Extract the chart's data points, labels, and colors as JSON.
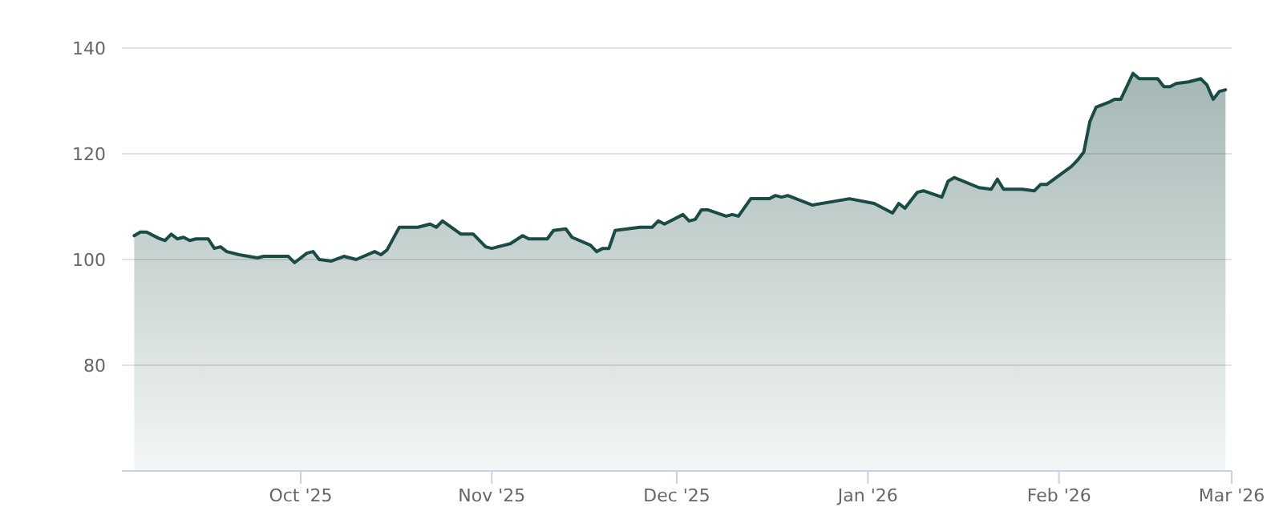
{
  "chart_data": {
    "type": "area",
    "x": [
      "2025-09-04",
      "2025-09-05",
      "2025-09-06",
      "2025-09-08",
      "2025-09-09",
      "2025-09-10",
      "2025-09-11",
      "2025-09-12",
      "2025-09-13",
      "2025-09-14",
      "2025-09-16",
      "2025-09-17",
      "2025-09-18",
      "2025-09-19",
      "2025-09-21",
      "2025-09-24",
      "2025-09-25",
      "2025-09-29",
      "2025-09-30",
      "2025-10-02",
      "2025-10-03",
      "2025-10-04",
      "2025-10-06",
      "2025-10-08",
      "2025-10-10",
      "2025-10-13",
      "2025-10-14",
      "2025-10-15",
      "2025-10-17",
      "2025-10-20",
      "2025-10-22",
      "2025-10-23",
      "2025-10-24",
      "2025-10-27",
      "2025-10-29",
      "2025-10-31",
      "2025-11-01",
      "2025-11-04",
      "2025-11-06",
      "2025-11-07",
      "2025-11-10",
      "2025-11-11",
      "2025-11-13",
      "2025-11-14",
      "2025-11-17",
      "2025-11-18",
      "2025-11-19",
      "2025-11-20",
      "2025-11-21",
      "2025-11-25",
      "2025-11-27",
      "2025-11-28",
      "2025-11-29",
      "2025-12-02",
      "2025-12-03",
      "2025-12-04",
      "2025-12-05",
      "2025-12-06",
      "2025-12-09",
      "2025-12-10",
      "2025-12-11",
      "2025-12-13",
      "2025-12-16",
      "2025-12-17",
      "2025-12-18",
      "2025-12-19",
      "2025-12-23",
      "2025-12-29",
      "2026-01-02",
      "2026-01-05",
      "2026-01-06",
      "2026-01-07",
      "2026-01-09",
      "2026-01-10",
      "2026-01-13",
      "2026-01-14",
      "2026-01-15",
      "2026-01-19",
      "2026-01-21",
      "2026-01-22",
      "2026-01-23",
      "2026-01-26",
      "2026-01-28",
      "2026-01-29",
      "2026-01-30",
      "2026-02-03",
      "2026-02-04",
      "2026-02-05",
      "2026-02-06",
      "2026-02-07",
      "2026-02-09",
      "2026-02-10",
      "2026-02-11",
      "2026-02-13",
      "2026-02-14",
      "2026-02-17",
      "2026-02-18",
      "2026-02-19",
      "2026-02-20",
      "2026-02-22",
      "2026-02-24",
      "2026-02-25",
      "2026-02-26",
      "2026-02-27",
      "2026-02-28"
    ],
    "series": [
      {
        "color": "#1b4b45",
        "values": [
          104.5,
          105.2,
          105.2,
          104.0,
          103.6,
          104.8,
          103.9,
          104.2,
          103.6,
          103.9,
          103.9,
          102.1,
          102.4,
          101.5,
          100.9,
          100.3,
          100.6,
          100.6,
          99.4,
          101.2,
          101.5,
          100.0,
          99.7,
          100.6,
          100.0,
          101.5,
          100.9,
          101.8,
          106.1,
          106.1,
          106.7,
          106.1,
          107.3,
          104.8,
          104.8,
          102.4,
          102.1,
          103.0,
          104.5,
          103.9,
          103.9,
          105.5,
          105.8,
          104.2,
          102.7,
          101.5,
          102.1,
          102.1,
          105.5,
          106.1,
          106.1,
          107.3,
          106.7,
          108.5,
          107.3,
          107.6,
          109.4,
          109.4,
          108.2,
          108.5,
          108.2,
          111.5,
          111.5,
          112.1,
          111.8,
          112.1,
          110.3,
          111.5,
          110.6,
          108.8,
          110.6,
          109.7,
          112.7,
          113.0,
          111.8,
          114.8,
          115.5,
          113.6,
          113.3,
          115.2,
          113.3,
          113.3,
          113.0,
          114.2,
          114.2,
          117.6,
          118.8,
          120.3,
          126.1,
          128.8,
          129.7,
          130.3,
          130.3,
          135.2,
          134.2,
          134.2,
          132.7,
          132.7,
          133.3,
          133.6,
          134.2,
          133.0,
          130.3,
          131.8,
          132.1
        ]
      }
    ],
    "xlim": [
      "2025-09-02",
      "2026-03-01"
    ],
    "xticks": [
      {
        "value": "2025-10-01",
        "label": "Oct '25"
      },
      {
        "value": "2025-11-01",
        "label": "Nov '25"
      },
      {
        "value": "2025-12-01",
        "label": "Dec '25"
      },
      {
        "value": "2026-01-01",
        "label": "Jan '26"
      },
      {
        "value": "2026-02-01",
        "label": "Feb '26"
      },
      {
        "value": "2026-03-01",
        "label": "Mar '26"
      }
    ],
    "ylim": [
      60,
      140
    ],
    "yticks": [
      80,
      100,
      120,
      140
    ],
    "grid": "y"
  }
}
